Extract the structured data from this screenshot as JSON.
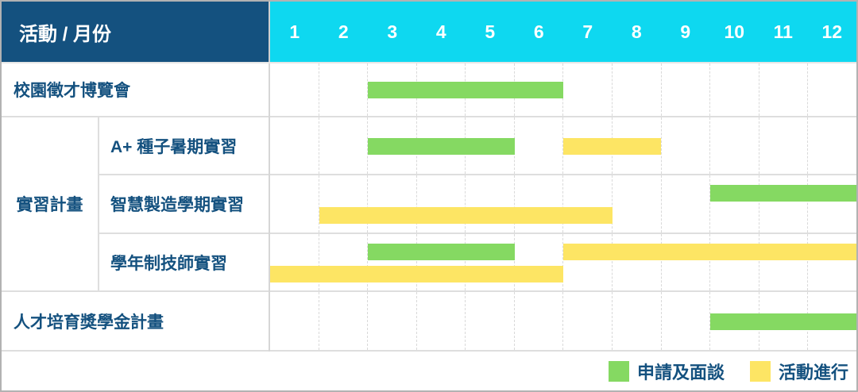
{
  "palette": {
    "header_bg": "#14517F",
    "month_bg": "#0ED8F0",
    "label_text": "#14517F",
    "green": "#85D962",
    "yellow": "#FDE564"
  },
  "header": {
    "corner_label": "活動 / 月份",
    "months": [
      "1",
      "2",
      "3",
      "4",
      "5",
      "6",
      "7",
      "8",
      "9",
      "10",
      "11",
      "12"
    ]
  },
  "legend": {
    "items": [
      {
        "label": "申請及面談",
        "color_key": "green",
        "color": "#85D962"
      },
      {
        "label": "活動進行",
        "color_key": "yellow",
        "color": "#FDE564"
      }
    ]
  },
  "chart_data": {
    "type": "bar",
    "variant": "gantt",
    "row_axis_label": "活動",
    "x_axis_label": "月份",
    "x_categories": [
      "1",
      "2",
      "3",
      "4",
      "5",
      "6",
      "7",
      "8",
      "9",
      "10",
      "11",
      "12"
    ],
    "x_range": [
      1,
      12
    ],
    "grid": true,
    "legend_position": "bottom-right",
    "rows": [
      {
        "label": "校園徵才博覽會",
        "group": null,
        "bars": [
          {
            "start_month": 3,
            "end_month": 6,
            "status": "申請及面談",
            "color_key": "green",
            "line": 0
          }
        ]
      },
      {
        "label": "A+ 種子暑期實習",
        "group": "實習計畫",
        "bars": [
          {
            "start_month": 3,
            "end_month": 5,
            "status": "申請及面談",
            "color_key": "green",
            "line": 0
          },
          {
            "start_month": 7,
            "end_month": 8,
            "status": "活動進行",
            "color_key": "yellow",
            "line": 0
          }
        ]
      },
      {
        "label": "智慧製造學期實習",
        "group": "實習計畫",
        "bars": [
          {
            "start_month": 10,
            "end_month": 12,
            "status": "申請及面談",
            "color_key": "green",
            "line": 0
          },
          {
            "start_month": 2,
            "end_month": 7,
            "status": "活動進行",
            "color_key": "yellow",
            "line": 1
          }
        ]
      },
      {
        "label": "學年制技師實習",
        "group": "實習計畫",
        "bars": [
          {
            "start_month": 3,
            "end_month": 5,
            "status": "申請及面談",
            "color_key": "green",
            "line": 0
          },
          {
            "start_month": 7,
            "end_month": 12,
            "status": "活動進行",
            "color_key": "yellow",
            "line": 0
          },
          {
            "start_month": 1,
            "end_month": 6,
            "status": "活動進行",
            "color_key": "yellow",
            "line": 1
          }
        ]
      },
      {
        "label": "人才培育獎學金計畫",
        "group": null,
        "bars": [
          {
            "start_month": 10,
            "end_month": 12,
            "status": "申請及面談",
            "color_key": "green",
            "line": 0
          }
        ]
      }
    ],
    "group_label": "實習計畫"
  }
}
